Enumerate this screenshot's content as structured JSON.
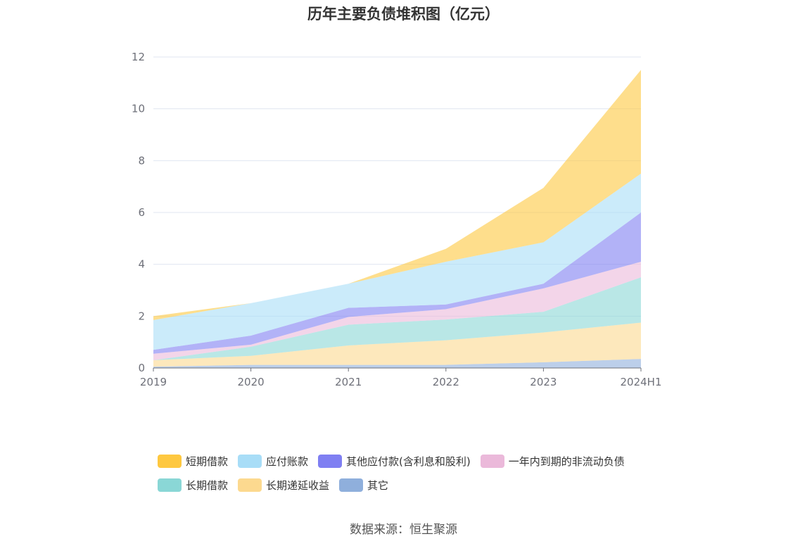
{
  "chart_data": {
    "type": "area",
    "stacked": true,
    "title": "历年主要负债堆积图（亿元）",
    "categories": [
      "2019",
      "2020",
      "2021",
      "2022",
      "2023",
      "2024H1"
    ],
    "ylim": [
      0,
      12
    ],
    "yticks": [
      "0",
      "2",
      "4",
      "6",
      "8",
      "10",
      "12"
    ],
    "grid": true,
    "legend_position": "bottom",
    "series": [
      {
        "name": "其它",
        "color": "#8fafdc",
        "values": [
          0.05,
          0.12,
          0.12,
          0.12,
          0.22,
          0.35
        ]
      },
      {
        "name": "长期递延收益",
        "color": "#fcd98f",
        "values": [
          0.25,
          0.35,
          0.75,
          0.95,
          1.15,
          1.4
        ]
      },
      {
        "name": "长期借款",
        "color": "#8ad7d6",
        "values": [
          0.0,
          0.35,
          0.8,
          0.8,
          0.8,
          1.75
        ]
      },
      {
        "name": "一年内到期的非流动负债",
        "color": "#ebb9da",
        "values": [
          0.25,
          0.08,
          0.3,
          0.4,
          0.9,
          0.6
        ]
      },
      {
        "name": "其他应付款(含利息和股利)",
        "color": "#7f7ff2",
        "values": [
          0.15,
          0.35,
          0.35,
          0.18,
          0.18,
          1.9
        ]
      },
      {
        "name": "应付账款",
        "color": "#a8ddf7",
        "values": [
          1.15,
          1.25,
          0.93,
          1.65,
          1.6,
          1.5
        ]
      },
      {
        "name": "短期借款",
        "color": "#fec840",
        "values": [
          0.15,
          0.0,
          0.0,
          0.5,
          2.1,
          4.0
        ]
      }
    ]
  },
  "legend": {
    "items": [
      {
        "label": "短期借款",
        "color": "#fec840"
      },
      {
        "label": "应付账款",
        "color": "#a8ddf7"
      },
      {
        "label": "其他应付款(含利息和股利)",
        "color": "#7f7ff2"
      },
      {
        "label": "一年内到期的非流动负债",
        "color": "#ebb9da"
      },
      {
        "label": "长期借款",
        "color": "#8ad7d6"
      },
      {
        "label": "长期递延收益",
        "color": "#fcd98f"
      },
      {
        "label": "其它",
        "color": "#8fafdc"
      }
    ]
  },
  "source": "数据来源：恒生聚源"
}
